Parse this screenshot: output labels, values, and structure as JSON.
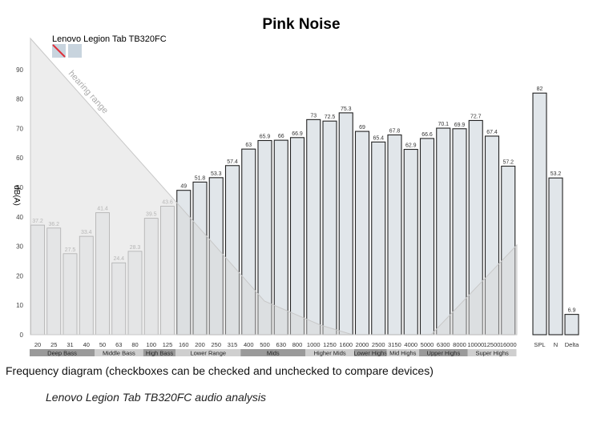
{
  "chart_data": {
    "type": "bar",
    "title": "Pink Noise",
    "device": "Lenovo Legion Tab TB320FC",
    "ylabel": "dB(A)",
    "annotation": "hearing range",
    "ylim": [
      0,
      100
    ],
    "yticks": [
      0,
      10,
      20,
      30,
      40,
      50,
      60,
      70,
      80,
      90
    ],
    "categories": [
      "20",
      "25",
      "31",
      "40",
      "50",
      "63",
      "80",
      "100",
      "125",
      "160",
      "200",
      "250",
      "315",
      "400",
      "500",
      "630",
      "800",
      "1000",
      "1250",
      "1600",
      "2000",
      "2500",
      "3150",
      "4000",
      "5000",
      "6300",
      "8000",
      "10000",
      "12500",
      "16000"
    ],
    "values": [
      37.2,
      36.2,
      27.5,
      33.4,
      41.4,
      24.4,
      28.3,
      39.5,
      43.6,
      49,
      51.8,
      53.3,
      57.4,
      63,
      65.9,
      66,
      66.9,
      73,
      72.5,
      75.3,
      69,
      65.4,
      67.8,
      62.9,
      66.6,
      70.1,
      69.9,
      72.7,
      67.4,
      57.2
    ],
    "value_labels": [
      "37.2",
      "36.2",
      "27.5",
      "33.4",
      "41.4",
      "24.4",
      "28.3",
      "39.5",
      "43.6",
      "49",
      "51.8",
      "53.3",
      "57.4",
      "63",
      "65.9",
      "66",
      "66.9",
      "73",
      "72.5",
      "75.3",
      "69",
      "65.4",
      "67.8",
      "62.9",
      "66.6",
      "70.1",
      "69.9",
      "72.7",
      "67.4",
      "57.2"
    ],
    "faded_bars": 9,
    "bands": [
      {
        "label": "Deep Bass",
        "from": 0,
        "to": 3
      },
      {
        "label": "Middle Bass",
        "from": 4,
        "to": 6
      },
      {
        "label": "High Bass",
        "from": 7,
        "to": 8
      },
      {
        "label": "Lower Range",
        "from": 9,
        "to": 12
      },
      {
        "label": "Mids",
        "from": 13,
        "to": 16
      },
      {
        "label": "Higher Mids",
        "from": 17,
        "to": 19
      },
      {
        "label": "Lower Highs",
        "from": 20,
        "to": 21
      },
      {
        "label": "Mid Highs",
        "from": 22,
        "to": 23
      },
      {
        "label": "Upper Highs",
        "from": 24,
        "to": 26
      },
      {
        "label": "Super Highs",
        "from": 27,
        "to": 29
      }
    ],
    "summary": {
      "categories": [
        "SPL",
        "N",
        "Delta"
      ],
      "values": [
        82,
        53.2,
        6.9
      ],
      "value_labels": [
        "82",
        "53.2",
        "6.9"
      ]
    },
    "colors": {
      "bar_fill": "#e1e6ea",
      "bar_fill_faded": "#eef0f2",
      "bar_stroke": "#222222",
      "bar_stroke_faded": "#8c8c8c",
      "band_dark": "#9a9a9a",
      "band_light": "#cfcfcf",
      "legend_swatch": "#c8d4de",
      "hearing_line": "#c8c8c8"
    }
  },
  "caption": "Frequency diagram (checkboxes can be checked and unchecked to compare devices)",
  "subcaption": "Lenovo Legion Tab TB320FC audio analysis"
}
